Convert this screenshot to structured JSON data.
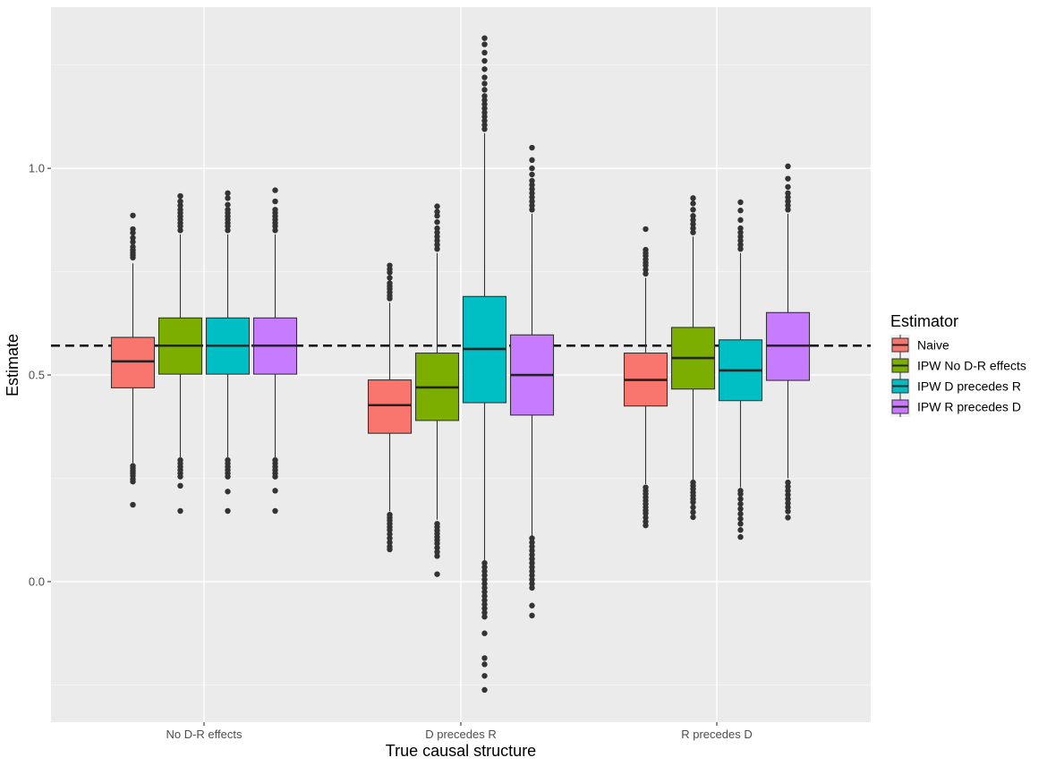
{
  "chart_data": {
    "type": "boxplot",
    "xlabel": "True causal structure",
    "ylabel": "Estimate",
    "categories": [
      "No D-R effects",
      "D precedes R",
      "R precedes D"
    ],
    "ylim": [
      -0.34,
      1.39
    ],
    "yticks": [
      0.0,
      0.5,
      1.0
    ],
    "ytick_labels": [
      "0.0",
      "0.5",
      "1.0"
    ],
    "reference_line": {
      "value": 0.571,
      "style": "dashed"
    },
    "legend": {
      "title": "Estimator",
      "position": "right"
    },
    "series": [
      {
        "name": "Naive",
        "color": "#F8766D",
        "boxes": [
          {
            "q1": 0.469,
            "median": 0.533,
            "q3": 0.591,
            "whisker_low": 0.287,
            "whisker_high": 0.77,
            "outliers": [
              0.186,
              0.242,
              0.248,
              0.256,
              0.262,
              0.268,
              0.274,
              0.28,
              0.784,
              0.79,
              0.796,
              0.802,
              0.81,
              0.822,
              0.832,
              0.844,
              0.853,
              0.886
            ]
          },
          {
            "q1": 0.359,
            "median": 0.427,
            "q3": 0.488,
            "whisker_low": 0.17,
            "whisker_high": 0.675,
            "outliers": [
              0.078,
              0.085,
              0.095,
              0.105,
              0.115,
              0.125,
              0.132,
              0.14,
              0.148,
              0.155,
              0.162,
              0.685,
              0.692,
              0.7,
              0.708,
              0.715,
              0.722,
              0.735,
              0.748,
              0.756,
              0.765
            ]
          },
          {
            "q1": 0.425,
            "median": 0.488,
            "q3": 0.553,
            "whisker_low": 0.236,
            "whisker_high": 0.735,
            "outliers": [
              0.136,
              0.145,
              0.155,
              0.165,
              0.172,
              0.18,
              0.188,
              0.196,
              0.204,
              0.212,
              0.22,
              0.228,
              0.745,
              0.755,
              0.765,
              0.772,
              0.78,
              0.788,
              0.795,
              0.803,
              0.853
            ]
          }
        ]
      },
      {
        "name": "IPW No D-R effects",
        "color": "#7CAE00",
        "boxes": [
          {
            "q1": 0.502,
            "median": 0.571,
            "q3": 0.638,
            "whisker_low": 0.3,
            "whisker_high": 0.84,
            "outliers": [
              0.171,
              0.232,
              0.254,
              0.262,
              0.27,
              0.278,
              0.286,
              0.294,
              0.85,
              0.86,
              0.868,
              0.876,
              0.884,
              0.892,
              0.9,
              0.91,
              0.92,
              0.933
            ]
          },
          {
            "q1": 0.39,
            "median": 0.47,
            "q3": 0.553,
            "whisker_low": 0.15,
            "whisker_high": 0.795,
            "outliers": [
              0.018,
              0.062,
              0.072,
              0.082,
              0.092,
              0.1,
              0.108,
              0.116,
              0.124,
              0.132,
              0.14,
              0.805,
              0.815,
              0.825,
              0.835,
              0.845,
              0.855,
              0.87,
              0.885,
              0.895,
              0.908
            ]
          },
          {
            "q1": 0.466,
            "median": 0.541,
            "q3": 0.615,
            "whisker_low": 0.245,
            "whisker_high": 0.835,
            "outliers": [
              0.156,
              0.168,
              0.18,
              0.192,
              0.2,
              0.208,
              0.216,
              0.224,
              0.232,
              0.24,
              0.845,
              0.855,
              0.865,
              0.875,
              0.885,
              0.9,
              0.915,
              0.928
            ]
          }
        ]
      },
      {
        "name": "IPW D precedes R",
        "color": "#00BFC4",
        "boxes": [
          {
            "q1": 0.502,
            "median": 0.571,
            "q3": 0.638,
            "whisker_low": 0.3,
            "whisker_high": 0.84,
            "outliers": [
              0.171,
              0.218,
              0.254,
              0.262,
              0.27,
              0.278,
              0.286,
              0.294,
              0.85,
              0.86,
              0.868,
              0.876,
              0.884,
              0.892,
              0.9,
              0.912,
              0.928,
              0.94
            ]
          },
          {
            "q1": 0.433,
            "median": 0.563,
            "q3": 0.69,
            "whisker_low": 0.05,
            "whisker_high": 1.085,
            "outliers": [
              -0.262,
              -0.228,
              -0.2,
              -0.185,
              -0.125,
              -0.085,
              -0.075,
              -0.065,
              -0.055,
              -0.045,
              -0.035,
              -0.025,
              -0.015,
              -0.005,
              0.005,
              0.015,
              0.025,
              0.035,
              0.045,
              1.095,
              1.105,
              1.115,
              1.125,
              1.135,
              1.145,
              1.155,
              1.165,
              1.175,
              1.19,
              1.205,
              1.22,
              1.24,
              1.26,
              1.28,
              1.3,
              1.315
            ]
          },
          {
            "q1": 0.438,
            "median": 0.511,
            "q3": 0.585,
            "whisker_low": 0.228,
            "whisker_high": 0.795,
            "outliers": [
              0.108,
              0.125,
              0.14,
              0.152,
              0.164,
              0.176,
              0.188,
              0.2,
              0.212,
              0.22,
              0.805,
              0.815,
              0.825,
              0.835,
              0.845,
              0.855,
              0.875,
              0.898,
              0.918
            ]
          }
        ]
      },
      {
        "name": "IPW R precedes D",
        "color": "#C77CFF",
        "boxes": [
          {
            "q1": 0.502,
            "median": 0.571,
            "q3": 0.638,
            "whisker_low": 0.3,
            "whisker_high": 0.84,
            "outliers": [
              0.171,
              0.22,
              0.254,
              0.262,
              0.27,
              0.278,
              0.286,
              0.294,
              0.85,
              0.86,
              0.868,
              0.876,
              0.884,
              0.892,
              0.9,
              0.92,
              0.947
            ]
          },
          {
            "q1": 0.403,
            "median": 0.5,
            "q3": 0.597,
            "whisker_low": 0.11,
            "whisker_high": 0.89,
            "outliers": [
              -0.082,
              -0.058,
              -0.015,
              -0.005,
              0.005,
              0.015,
              0.025,
              0.035,
              0.045,
              0.055,
              0.065,
              0.075,
              0.085,
              0.095,
              0.105,
              0.9,
              0.91,
              0.92,
              0.93,
              0.94,
              0.95,
              0.96,
              0.97,
              0.985,
              1.0,
              1.02,
              1.05
            ]
          },
          {
            "q1": 0.487,
            "median": 0.571,
            "q3": 0.651,
            "whisker_low": 0.25,
            "whisker_high": 0.89,
            "outliers": [
              0.155,
              0.17,
              0.18,
              0.19,
              0.2,
              0.21,
              0.22,
              0.23,
              0.24,
              0.9,
              0.91,
              0.92,
              0.93,
              0.94,
              0.955,
              0.975,
              1.005
            ]
          }
        ]
      }
    ]
  }
}
